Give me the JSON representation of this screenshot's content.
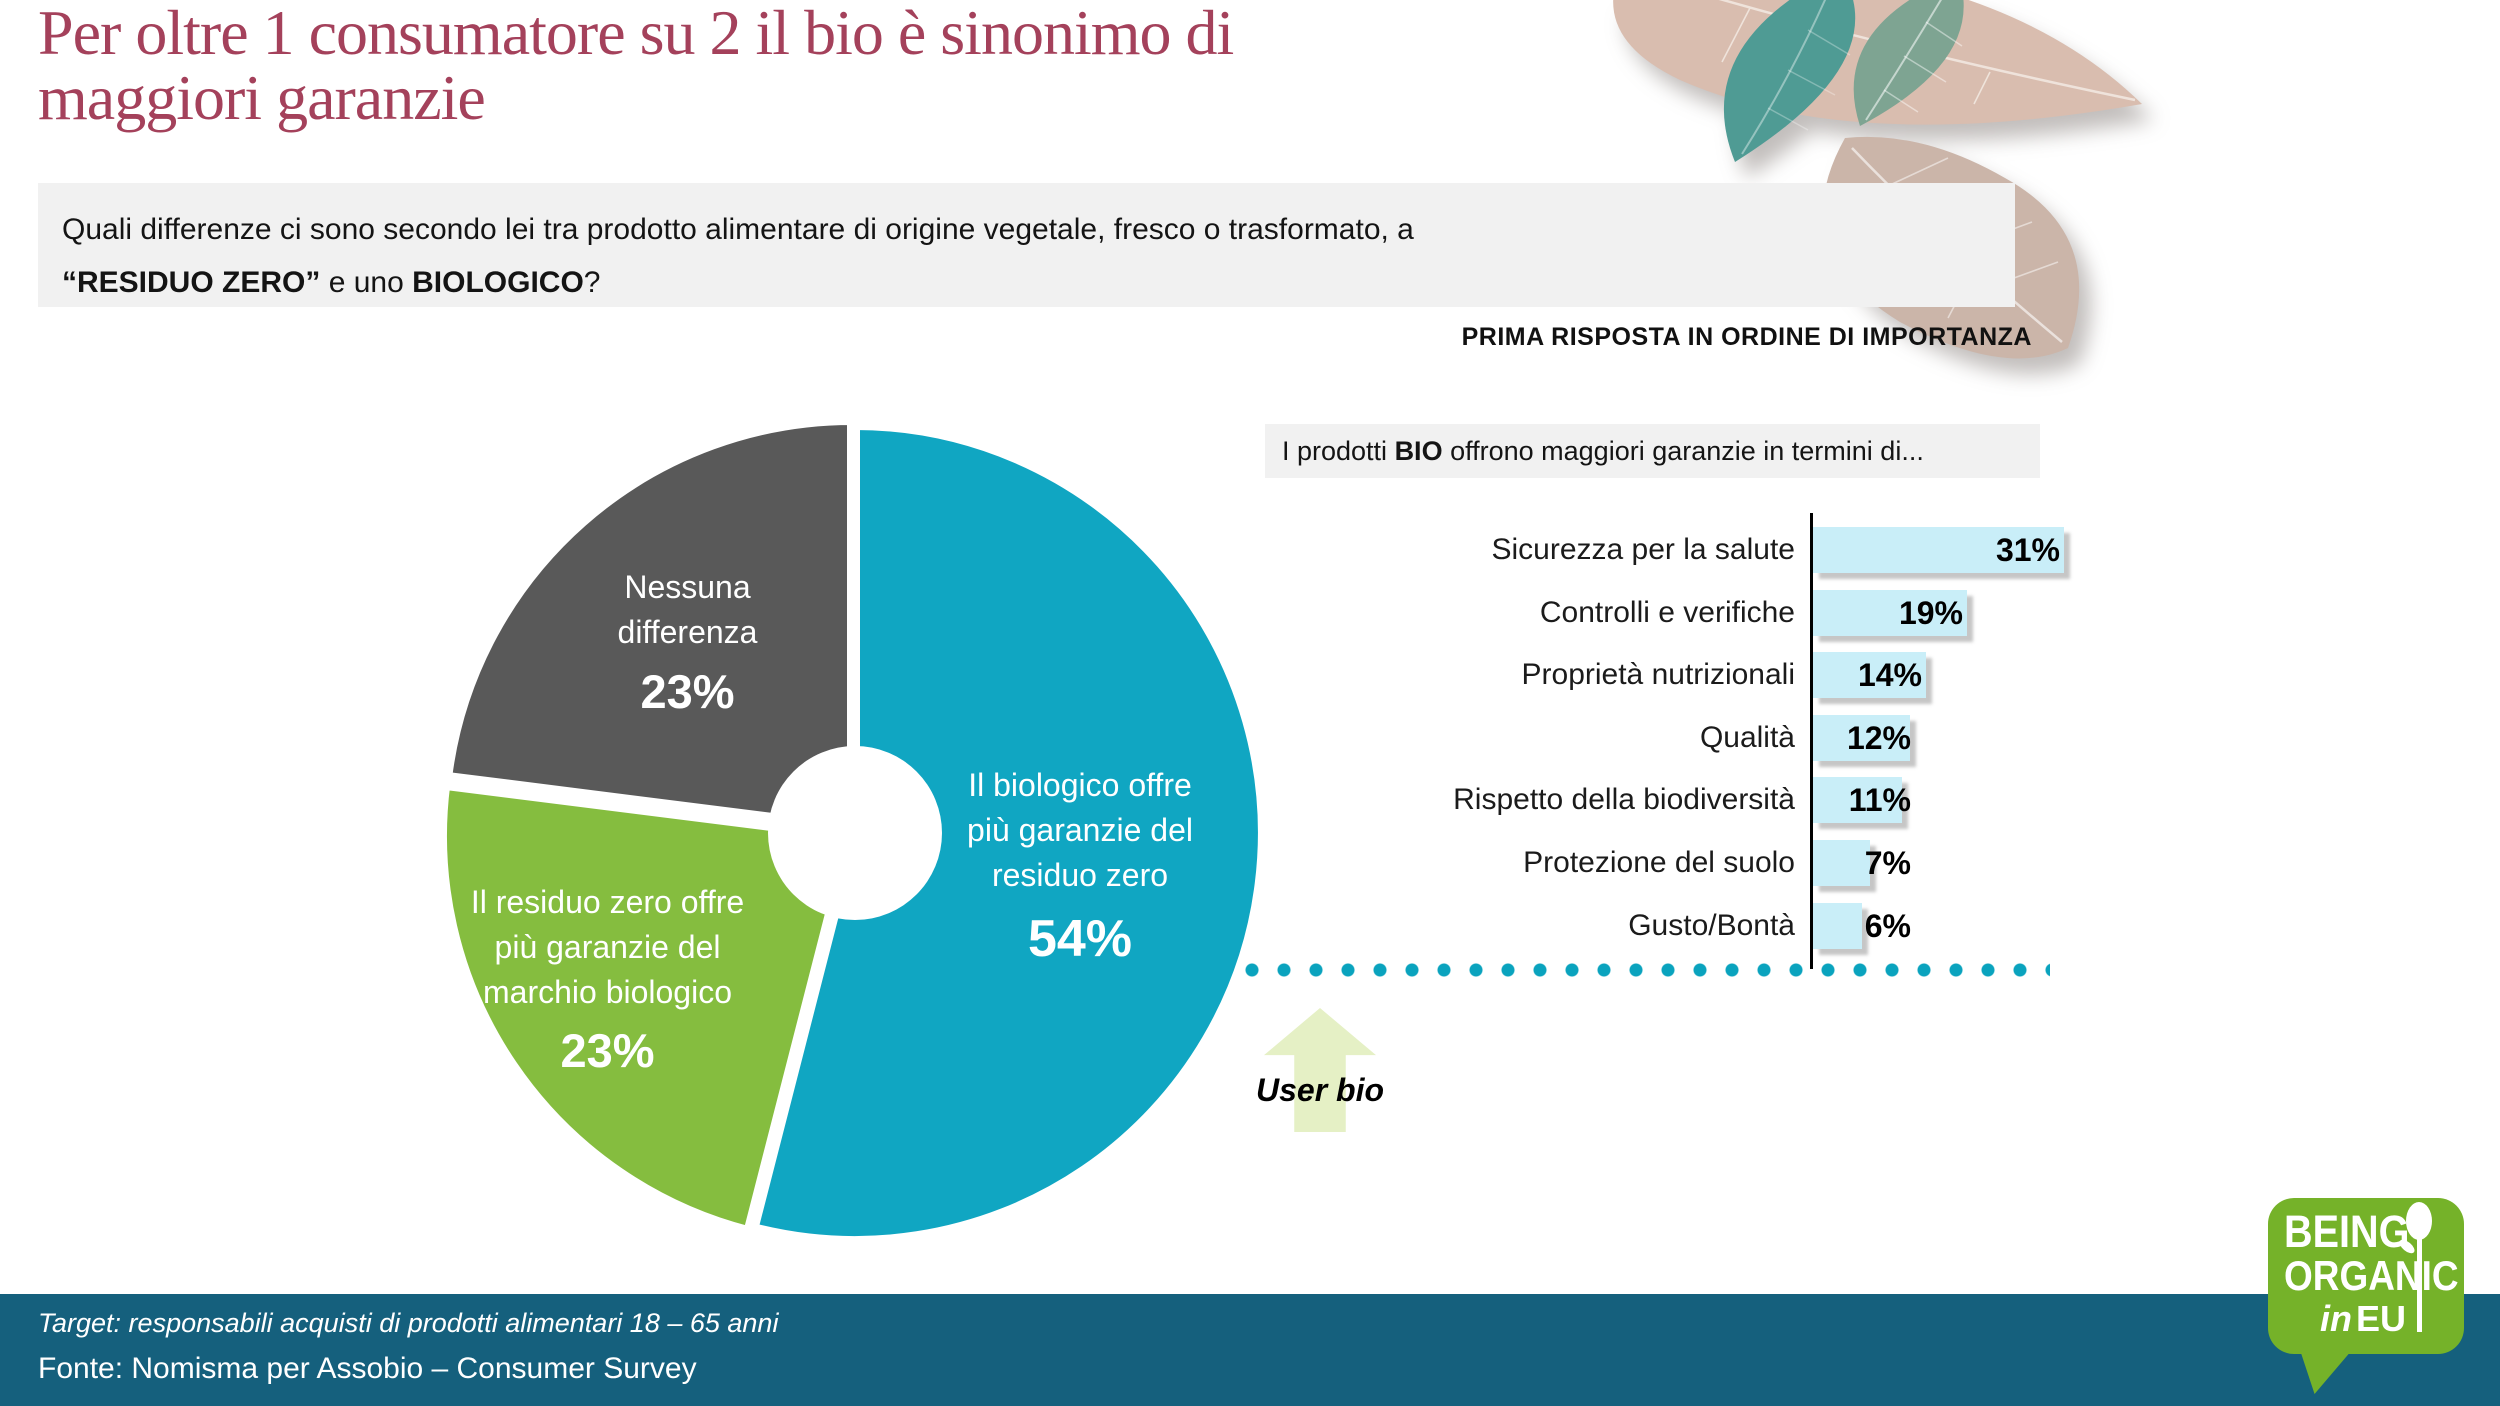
{
  "slide": {
    "title_line1": "Per oltre 1 consumatore su 2 il bio è sinonimo di",
    "title_line2": "maggiori garanzie",
    "question_line1": "Quali differenze ci sono secondo lei tra prodotto alimentare di origine vegetale, fresco o trasformato, a",
    "question_bold1": "“RESIDUO ZERO”",
    "question_mid": " e uno ",
    "question_bold2": "BIOLOGICO",
    "question_suffix": "?",
    "note": "PRIMA RISPOSTA IN ORDINE DI IMPORTANZA"
  },
  "bars_header": {
    "prefix": "I prodotti ",
    "bold": "BIO",
    "suffix": " offrono maggiori garanzie in termini di..."
  },
  "annotation": {
    "user_bio": "User bio"
  },
  "footer": {
    "target": "Target: responsabili acquisti di prodotti alimentari 18 – 65 anni",
    "fonte": "Fonte: Nomisma per Assobio – Consumer Survey"
  },
  "logo": {
    "line1": "BEING",
    "line2": "ORGANIC",
    "line3_italic": "in",
    "line3": "EU"
  },
  "colors": {
    "title": "#A4415B",
    "pie_teal": "#10A6C2",
    "pie_green": "#85BD3F",
    "pie_gray": "#595959",
    "bar_fill": "#C9EEF8",
    "dotted_teal": "#0AA3BE",
    "footer_bg": "#15607D",
    "logo_green": "#75B229",
    "arrow_green": "#E5F0C5"
  },
  "chart_data": [
    {
      "type": "pie",
      "donut": true,
      "value_format": "percent",
      "slices": [
        {
          "label": "Il biologico offre più garanzie del residuo zero",
          "label_lines": [
            "Il biologico offre",
            "più garanzie del",
            "residuo zero"
          ],
          "value": 54,
          "display": "54%",
          "color": "#10A6C2"
        },
        {
          "label": "Il residuo zero offre più garanzie del marchio biologico",
          "label_lines": [
            "Il residuo zero offre",
            "più garanzie del",
            "marchio biologico"
          ],
          "value": 23,
          "display": "23%",
          "color": "#85BD3F"
        },
        {
          "label": "Nessuna differenza",
          "label_lines": [
            "Nessuna",
            "differenza"
          ],
          "value": 23,
          "display": "23%",
          "color": "#595959"
        }
      ]
    },
    {
      "type": "bar",
      "orientation": "horizontal",
      "title": "I prodotti BIO offrono maggiori garanzie in termini di...",
      "categories": [
        "Sicurezza per la salute",
        "Controlli e verifiche",
        "Proprietà nutrizionali",
        "Qualità",
        "Rispetto della biodiversità",
        "Protezione del suolo",
        "Gusto/Bontà"
      ],
      "values": [
        31,
        19,
        14,
        12,
        11,
        7,
        6
      ],
      "unit": "%",
      "xlim": [
        0,
        33
      ],
      "bar_color": "#C9EEF8",
      "grid": false,
      "legend": "none",
      "annotation": "User bio"
    }
  ]
}
